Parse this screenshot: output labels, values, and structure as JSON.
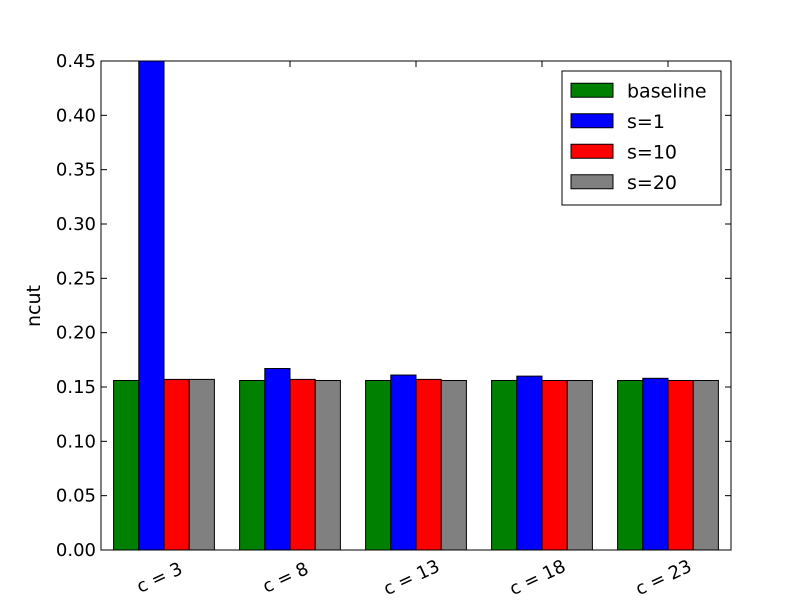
{
  "chart_data": {
    "type": "bar",
    "ylabel": "ncut",
    "ylim": [
      0,
      0.45
    ],
    "yticks": [
      "0.00",
      "0.05",
      "0.10",
      "0.15",
      "0.20",
      "0.25",
      "0.30",
      "0.35",
      "0.40",
      "0.45"
    ],
    "categories": [
      "c = 3",
      "c = 8",
      "c = 13",
      "c = 18",
      "c = 23"
    ],
    "series": [
      {
        "name": "baseline",
        "color": "#008000",
        "values": [
          0.156,
          0.156,
          0.156,
          0.156,
          0.156
        ]
      },
      {
        "name": "s=1",
        "color": "#0000ff",
        "values": [
          0.45,
          0.167,
          0.161,
          0.16,
          0.158
        ]
      },
      {
        "name": "s=10",
        "color": "#ff0000",
        "values": [
          0.157,
          0.157,
          0.157,
          0.156,
          0.156
        ]
      },
      {
        "name": "s=20",
        "color": "#808080",
        "values": [
          0.157,
          0.156,
          0.156,
          0.156,
          0.156
        ]
      }
    ],
    "legend": {
      "position": "top-right"
    },
    "grid": false
  }
}
